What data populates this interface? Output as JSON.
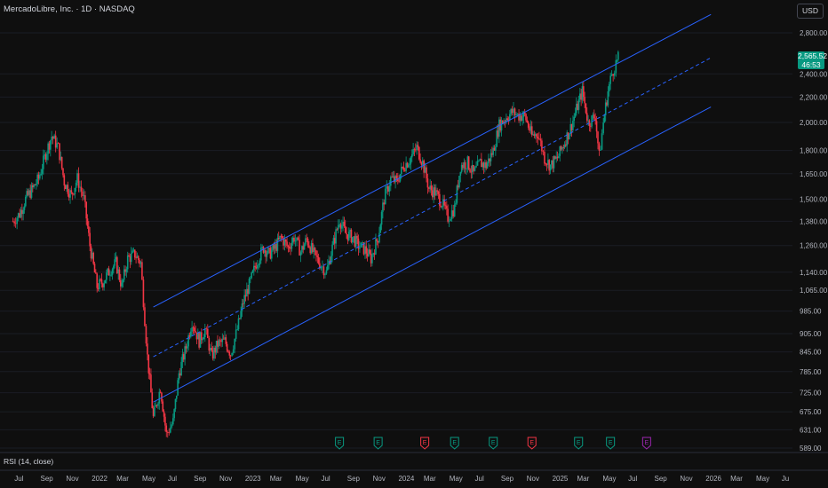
{
  "header": {
    "title": "MercadoLibre, Inc. · 1D · NASDAQ",
    "currency": "USD"
  },
  "last_price": {
    "value": "2,565.52",
    "countdown": "46:53"
  },
  "indicator_pane": {
    "label": "RSI (14, close)"
  },
  "colors": {
    "background": "#0f0f0f",
    "up": "#089981",
    "down": "#f23645",
    "channel": "#2962ff",
    "earnings_green": "#089981",
    "earnings_red": "#f23645",
    "earnings_future": "#9c27b0"
  },
  "chart_data": {
    "type": "candlestick",
    "y_scale": "log",
    "y_ticks": [
      "2,800.00",
      "2,400.00",
      "2,200.00",
      "2,000.00",
      "1,800.00",
      "1,650.00",
      "1,500.00",
      "1,380.00",
      "1,260.00",
      "1,140.00",
      "1,065.00",
      "985.00",
      "905.00",
      "845.00",
      "785.00",
      "725.00",
      "675.00",
      "631.00",
      "589.00"
    ],
    "x_ticks": [
      "Jul",
      "Sep",
      "Nov",
      "2022",
      "Mar",
      "May",
      "Jul",
      "Sep",
      "Nov",
      "2023",
      "Mar",
      "May",
      "Jul",
      "Sep",
      "Nov",
      "2024",
      "Mar",
      "May",
      "Jul",
      "Sep",
      "Nov",
      "2025",
      "Mar",
      "May",
      "Jul",
      "Sep",
      "Nov",
      "2026",
      "Mar",
      "May",
      "Ju"
    ],
    "price_series": [
      [
        "2021-06-15",
        1380
      ],
      [
        "2021-07-01",
        1420
      ],
      [
        "2021-07-15",
        1500
      ],
      [
        "2021-08-01",
        1560
      ],
      [
        "2021-08-15",
        1620
      ],
      [
        "2021-09-01",
        1780
      ],
      [
        "2021-09-15",
        1900
      ],
      [
        "2021-10-01",
        1820
      ],
      [
        "2021-10-15",
        1600
      ],
      [
        "2021-11-01",
        1520
      ],
      [
        "2021-11-15",
        1620
      ],
      [
        "2021-12-01",
        1500
      ],
      [
        "2021-12-15",
        1260
      ],
      [
        "2022-01-01",
        1080
      ],
      [
        "2022-01-15",
        1100
      ],
      [
        "2022-02-01",
        1150
      ],
      [
        "2022-02-15",
        1180
      ],
      [
        "2022-03-01",
        1080
      ],
      [
        "2022-03-15",
        1200
      ],
      [
        "2022-04-01",
        1220
      ],
      [
        "2022-04-15",
        1180
      ],
      [
        "2022-05-01",
        830
      ],
      [
        "2022-05-15",
        660
      ],
      [
        "2022-06-01",
        740
      ],
      [
        "2022-06-15",
        620
      ],
      [
        "2022-07-01",
        650
      ],
      [
        "2022-07-15",
        780
      ],
      [
        "2022-08-01",
        860
      ],
      [
        "2022-08-15",
        950
      ],
      [
        "2022-09-01",
        880
      ],
      [
        "2022-09-15",
        920
      ],
      [
        "2022-10-01",
        830
      ],
      [
        "2022-10-15",
        870
      ],
      [
        "2022-11-01",
        880
      ],
      [
        "2022-11-15",
        840
      ],
      [
        "2022-12-01",
        920
      ],
      [
        "2022-12-15",
        1020
      ],
      [
        "2023-01-01",
        1100
      ],
      [
        "2023-01-15",
        1180
      ],
      [
        "2023-02-01",
        1250
      ],
      [
        "2023-02-15",
        1220
      ],
      [
        "2023-03-01",
        1250
      ],
      [
        "2023-03-15",
        1300
      ],
      [
        "2023-04-01",
        1250
      ],
      [
        "2023-04-15",
        1300
      ],
      [
        "2023-05-01",
        1230
      ],
      [
        "2023-05-15",
        1290
      ],
      [
        "2023-06-01",
        1220
      ],
      [
        "2023-06-15",
        1180
      ],
      [
        "2023-07-01",
        1140
      ],
      [
        "2023-07-15",
        1250
      ],
      [
        "2023-08-01",
        1390
      ],
      [
        "2023-08-15",
        1320
      ],
      [
        "2023-09-01",
        1300
      ],
      [
        "2023-09-15",
        1260
      ],
      [
        "2023-10-01",
        1240
      ],
      [
        "2023-10-15",
        1200
      ],
      [
        "2023-11-01",
        1300
      ],
      [
        "2023-11-15",
        1500
      ],
      [
        "2023-12-01",
        1620
      ],
      [
        "2023-12-15",
        1600
      ],
      [
        "2024-01-01",
        1700
      ],
      [
        "2024-01-15",
        1740
      ],
      [
        "2024-02-01",
        1820
      ],
      [
        "2024-02-15",
        1720
      ],
      [
        "2024-03-01",
        1560
      ],
      [
        "2024-03-15",
        1540
      ],
      [
        "2024-04-01",
        1480
      ],
      [
        "2024-04-15",
        1400
      ],
      [
        "2024-05-01",
        1450
      ],
      [
        "2024-05-15",
        1700
      ],
      [
        "2024-06-01",
        1720
      ],
      [
        "2024-06-15",
        1650
      ],
      [
        "2024-07-01",
        1720
      ],
      [
        "2024-07-15",
        1700
      ],
      [
        "2024-08-01",
        1800
      ],
      [
        "2024-08-15",
        1980
      ],
      [
        "2024-09-01",
        2040
      ],
      [
        "2024-09-15",
        2080
      ],
      [
        "2024-10-01",
        2050
      ],
      [
        "2024-10-15",
        2050
      ],
      [
        "2024-11-01",
        1900
      ],
      [
        "2024-11-15",
        1920
      ],
      [
        "2024-12-01",
        1750
      ],
      [
        "2024-12-15",
        1700
      ],
      [
        "2025-01-01",
        1750
      ],
      [
        "2025-01-15",
        1840
      ],
      [
        "2025-02-01",
        1960
      ],
      [
        "2025-02-15",
        2100
      ],
      [
        "2025-03-01",
        2250
      ],
      [
        "2025-03-15",
        2000
      ],
      [
        "2025-04-01",
        2050
      ],
      [
        "2025-04-10",
        1760
      ],
      [
        "2025-04-20",
        2000
      ],
      [
        "2025-05-01",
        2250
      ],
      [
        "2025-05-10",
        2400
      ],
      [
        "2025-05-20",
        2500
      ],
      [
        "2025-05-28",
        2565.52
      ]
    ],
    "channel": {
      "start_date": "2022-05-15",
      "end_date": "2026-01-01",
      "upper": [
        1000,
        3000
      ],
      "mid": [
        830,
        2550
      ],
      "lower": [
        700,
        2120
      ]
    },
    "earnings_markers": [
      {
        "label": "E",
        "date": "2023-08-01",
        "status": "beat"
      },
      {
        "label": "E",
        "date": "2023-11-01",
        "status": "beat"
      },
      {
        "label": "E",
        "date": "2024-02-20",
        "status": "miss"
      },
      {
        "label": "E",
        "date": "2024-05-01",
        "status": "beat"
      },
      {
        "label": "E",
        "date": "2024-08-01",
        "status": "beat"
      },
      {
        "label": "E",
        "date": "2024-11-01",
        "status": "miss"
      },
      {
        "label": "E",
        "date": "2025-02-20",
        "status": "beat"
      },
      {
        "label": "E",
        "date": "2025-05-07",
        "status": "beat"
      },
      {
        "label": "E",
        "date": "2025-08-01",
        "status": "upcoming"
      }
    ]
  }
}
